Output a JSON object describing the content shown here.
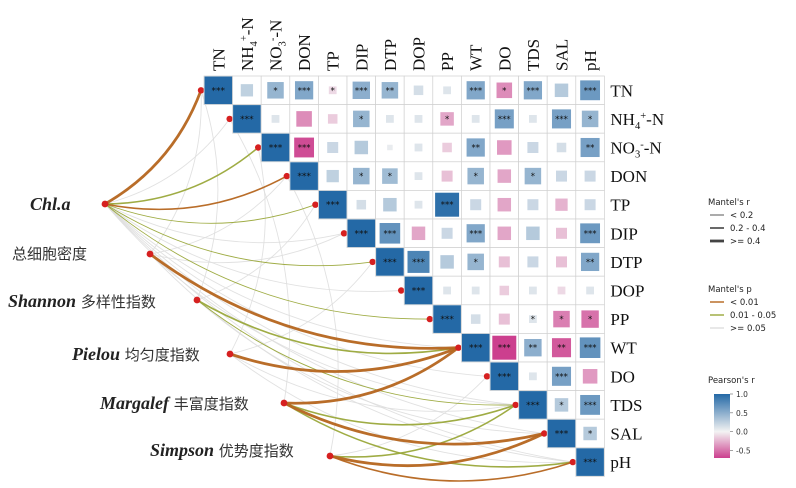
{
  "chart_data": {
    "type": "heatmap",
    "variables": [
      "TN",
      "NH4+-N",
      "NO3--N",
      "DON",
      "TP",
      "DIP",
      "DTP",
      "DOP",
      "PP",
      "WT",
      "DO",
      "TDS",
      "SAL",
      "pH"
    ],
    "variable_labels": [
      {
        "base": "TN"
      },
      {
        "base": "NH",
        "sub": "4",
        "sup": "+",
        "tail": "-N"
      },
      {
        "base": "NO",
        "sub": "3",
        "sup": "-",
        "tail": "-N"
      },
      {
        "base": "DON"
      },
      {
        "base": "TP"
      },
      {
        "base": "DIP"
      },
      {
        "base": "DTP"
      },
      {
        "base": "DOP"
      },
      {
        "base": "PP"
      },
      {
        "base": "WT"
      },
      {
        "base": "DO"
      },
      {
        "base": "TDS"
      },
      {
        "base": "SAL"
      },
      {
        "base": "pH"
      }
    ],
    "correlations": [
      {
        "row": 0,
        "col": 1,
        "r": 0.25,
        "sig": ""
      },
      {
        "row": 0,
        "col": 2,
        "r": 0.45,
        "sig": "*"
      },
      {
        "row": 0,
        "col": 3,
        "r": 0.55,
        "sig": "***"
      },
      {
        "row": 0,
        "col": 4,
        "r": -0.1,
        "sig": "*"
      },
      {
        "row": 0,
        "col": 5,
        "r": 0.5,
        "sig": "***"
      },
      {
        "row": 0,
        "col": 6,
        "r": 0.45,
        "sig": "**"
      },
      {
        "row": 0,
        "col": 7,
        "r": 0.15,
        "sig": ""
      },
      {
        "row": 0,
        "col": 8,
        "r": 0.1,
        "sig": ""
      },
      {
        "row": 0,
        "col": 9,
        "r": 0.55,
        "sig": "***"
      },
      {
        "row": 0,
        "col": 10,
        "r": -0.4,
        "sig": "*"
      },
      {
        "row": 0,
        "col": 11,
        "r": 0.55,
        "sig": "***"
      },
      {
        "row": 0,
        "col": 12,
        "r": 0.3,
        "sig": ""
      },
      {
        "row": 0,
        "col": 13,
        "r": 0.65,
        "sig": "***"
      },
      {
        "row": 1,
        "col": 2,
        "r": 0.1,
        "sig": ""
      },
      {
        "row": 1,
        "col": 3,
        "r": -0.4,
        "sig": ""
      },
      {
        "row": 1,
        "col": 4,
        "r": -0.15,
        "sig": ""
      },
      {
        "row": 1,
        "col": 5,
        "r": 0.45,
        "sig": "*"
      },
      {
        "row": 1,
        "col": 6,
        "r": 0.1,
        "sig": ""
      },
      {
        "row": 1,
        "col": 7,
        "r": 0.1,
        "sig": ""
      },
      {
        "row": 1,
        "col": 8,
        "r": -0.3,
        "sig": "*"
      },
      {
        "row": 1,
        "col": 9,
        "r": 0.1,
        "sig": ""
      },
      {
        "row": 1,
        "col": 10,
        "r": 0.6,
        "sig": "***"
      },
      {
        "row": 1,
        "col": 11,
        "r": 0.1,
        "sig": ""
      },
      {
        "row": 1,
        "col": 12,
        "r": 0.6,
        "sig": "***"
      },
      {
        "row": 1,
        "col": 13,
        "r": 0.45,
        "sig": "*"
      },
      {
        "row": 2,
        "col": 3,
        "r": -0.65,
        "sig": "***"
      },
      {
        "row": 2,
        "col": 4,
        "r": 0.2,
        "sig": ""
      },
      {
        "row": 2,
        "col": 5,
        "r": 0.3,
        "sig": ""
      },
      {
        "row": 2,
        "col": 6,
        "r": 0.05,
        "sig": ""
      },
      {
        "row": 2,
        "col": 7,
        "r": 0.1,
        "sig": ""
      },
      {
        "row": 2,
        "col": 8,
        "r": -0.15,
        "sig": ""
      },
      {
        "row": 2,
        "col": 9,
        "r": 0.55,
        "sig": "**"
      },
      {
        "row": 2,
        "col": 10,
        "r": -0.35,
        "sig": ""
      },
      {
        "row": 2,
        "col": 11,
        "r": 0.2,
        "sig": ""
      },
      {
        "row": 2,
        "col": 12,
        "r": 0.15,
        "sig": ""
      },
      {
        "row": 2,
        "col": 13,
        "r": 0.6,
        "sig": "**"
      },
      {
        "row": 3,
        "col": 4,
        "r": 0.25,
        "sig": ""
      },
      {
        "row": 3,
        "col": 5,
        "r": 0.45,
        "sig": "*"
      },
      {
        "row": 3,
        "col": 6,
        "r": 0.4,
        "sig": "*"
      },
      {
        "row": 3,
        "col": 7,
        "r": 0.1,
        "sig": ""
      },
      {
        "row": 3,
        "col": 8,
        "r": -0.2,
        "sig": ""
      },
      {
        "row": 3,
        "col": 9,
        "r": 0.45,
        "sig": "*"
      },
      {
        "row": 3,
        "col": 10,
        "r": -0.3,
        "sig": ""
      },
      {
        "row": 3,
        "col": 11,
        "r": 0.45,
        "sig": "*"
      },
      {
        "row": 3,
        "col": 12,
        "r": 0.2,
        "sig": ""
      },
      {
        "row": 3,
        "col": 13,
        "r": 0.2,
        "sig": ""
      },
      {
        "row": 4,
        "col": 5,
        "r": 0.15,
        "sig": ""
      },
      {
        "row": 4,
        "col": 6,
        "r": 0.3,
        "sig": ""
      },
      {
        "row": 4,
        "col": 7,
        "r": 0.1,
        "sig": ""
      },
      {
        "row": 4,
        "col": 8,
        "r": 0.95,
        "sig": "***"
      },
      {
        "row": 4,
        "col": 9,
        "r": 0.2,
        "sig": ""
      },
      {
        "row": 4,
        "col": 10,
        "r": -0.3,
        "sig": ""
      },
      {
        "row": 4,
        "col": 11,
        "r": 0.2,
        "sig": ""
      },
      {
        "row": 4,
        "col": 12,
        "r": -0.25,
        "sig": ""
      },
      {
        "row": 4,
        "col": 13,
        "r": 0.2,
        "sig": ""
      },
      {
        "row": 5,
        "col": 6,
        "r": 0.7,
        "sig": "***"
      },
      {
        "row": 5,
        "col": 7,
        "r": -0.3,
        "sig": ""
      },
      {
        "row": 5,
        "col": 8,
        "r": 0.2,
        "sig": ""
      },
      {
        "row": 5,
        "col": 9,
        "r": 0.55,
        "sig": "***"
      },
      {
        "row": 5,
        "col": 10,
        "r": -0.3,
        "sig": ""
      },
      {
        "row": 5,
        "col": 11,
        "r": 0.3,
        "sig": ""
      },
      {
        "row": 5,
        "col": 12,
        "r": -0.2,
        "sig": ""
      },
      {
        "row": 5,
        "col": 13,
        "r": 0.65,
        "sig": "***"
      },
      {
        "row": 6,
        "col": 7,
        "r": 0.8,
        "sig": "***"
      },
      {
        "row": 6,
        "col": 8,
        "r": 0.3,
        "sig": ""
      },
      {
        "row": 6,
        "col": 9,
        "r": 0.45,
        "sig": "*"
      },
      {
        "row": 6,
        "col": 10,
        "r": -0.2,
        "sig": ""
      },
      {
        "row": 6,
        "col": 11,
        "r": 0.2,
        "sig": ""
      },
      {
        "row": 6,
        "col": 12,
        "r": -0.2,
        "sig": ""
      },
      {
        "row": 6,
        "col": 13,
        "r": 0.55,
        "sig": "**"
      },
      {
        "row": 7,
        "col": 8,
        "r": 0.1,
        "sig": ""
      },
      {
        "row": 7,
        "col": 9,
        "r": 0.1,
        "sig": ""
      },
      {
        "row": 7,
        "col": 10,
        "r": -0.15,
        "sig": ""
      },
      {
        "row": 7,
        "col": 11,
        "r": 0.1,
        "sig": ""
      },
      {
        "row": 7,
        "col": 12,
        "r": -0.1,
        "sig": ""
      },
      {
        "row": 7,
        "col": 13,
        "r": 0.1,
        "sig": ""
      },
      {
        "row": 8,
        "col": 9,
        "r": 0.15,
        "sig": ""
      },
      {
        "row": 8,
        "col": 10,
        "r": -0.2,
        "sig": ""
      },
      {
        "row": 8,
        "col": 11,
        "r": 0.1,
        "sig": "*"
      },
      {
        "row": 8,
        "col": 12,
        "r": -0.45,
        "sig": "*"
      },
      {
        "row": 8,
        "col": 13,
        "r": -0.5,
        "sig": "*"
      },
      {
        "row": 9,
        "col": 10,
        "r": -0.95,
        "sig": "***"
      },
      {
        "row": 9,
        "col": 11,
        "r": 0.5,
        "sig": "**"
      },
      {
        "row": 9,
        "col": 12,
        "r": -0.6,
        "sig": "**"
      },
      {
        "row": 9,
        "col": 13,
        "r": 0.7,
        "sig": "***"
      },
      {
        "row": 10,
        "col": 11,
        "r": 0.1,
        "sig": ""
      },
      {
        "row": 10,
        "col": 12,
        "r": 0.6,
        "sig": "***"
      },
      {
        "row": 10,
        "col": 13,
        "r": -0.35,
        "sig": ""
      },
      {
        "row": 11,
        "col": 12,
        "r": 0.3,
        "sig": "*"
      },
      {
        "row": 11,
        "col": 13,
        "r": 0.65,
        "sig": "***"
      },
      {
        "row": 12,
        "col": 13,
        "r": 0.3,
        "sig": "*"
      }
    ],
    "diagonal_sig": "***",
    "biotic_indices": [
      {
        "id": "chla",
        "italic": "Chl.a",
        "rest": ""
      },
      {
        "id": "density",
        "italic": "",
        "rest": "总细胞密度"
      },
      {
        "id": "shannon",
        "italic": "Shannon",
        "rest": " 多样性指数"
      },
      {
        "id": "pielou",
        "italic": "Pielou",
        "rest": " 均匀度指数"
      },
      {
        "id": "margalef",
        "italic": "Margalef",
        "rest": " 丰富度指数"
      },
      {
        "id": "simpson",
        "italic": "Simpson",
        "rest": " 优势度指数"
      }
    ],
    "mantel_links": [
      {
        "from": 0,
        "to": 0,
        "r_class": 2,
        "p_class": 0
      },
      {
        "from": 0,
        "to": 1,
        "r_class": 0,
        "p_class": 2
      },
      {
        "from": 0,
        "to": 2,
        "r_class": 1,
        "p_class": 1
      },
      {
        "from": 0,
        "to": 3,
        "r_class": 1,
        "p_class": 0
      },
      {
        "from": 0,
        "to": 4,
        "r_class": 0,
        "p_class": 1
      },
      {
        "from": 0,
        "to": 5,
        "r_class": 0,
        "p_class": 2
      },
      {
        "from": 0,
        "to": 6,
        "r_class": 0,
        "p_class": 1
      },
      {
        "from": 0,
        "to": 7,
        "r_class": 0,
        "p_class": 2
      },
      {
        "from": 0,
        "to": 8,
        "r_class": 0,
        "p_class": 1
      },
      {
        "from": 0,
        "to": 9,
        "r_class": 0,
        "p_class": 2
      },
      {
        "from": 0,
        "to": 10,
        "r_class": 0,
        "p_class": 2
      },
      {
        "from": 0,
        "to": 11,
        "r_class": 0,
        "p_class": 2
      },
      {
        "from": 0,
        "to": 12,
        "r_class": 0,
        "p_class": 2
      },
      {
        "from": 0,
        "to": 13,
        "r_class": 0,
        "p_class": 2
      },
      {
        "from": 1,
        "to": 0,
        "r_class": 0,
        "p_class": 2
      },
      {
        "from": 1,
        "to": 3,
        "r_class": 0,
        "p_class": 2
      },
      {
        "from": 1,
        "to": 5,
        "r_class": 0,
        "p_class": 2
      },
      {
        "from": 1,
        "to": 9,
        "r_class": 2,
        "p_class": 0
      },
      {
        "from": 1,
        "to": 11,
        "r_class": 0,
        "p_class": 2
      },
      {
        "from": 1,
        "to": 13,
        "r_class": 0,
        "p_class": 2
      },
      {
        "from": 2,
        "to": 0,
        "r_class": 0,
        "p_class": 2
      },
      {
        "from": 2,
        "to": 4,
        "r_class": 0,
        "p_class": 2
      },
      {
        "from": 2,
        "to": 9,
        "r_class": 1,
        "p_class": 1
      },
      {
        "from": 2,
        "to": 11,
        "r_class": 0,
        "p_class": 1
      },
      {
        "from": 2,
        "to": 12,
        "r_class": 0,
        "p_class": 2
      },
      {
        "from": 3,
        "to": 2,
        "r_class": 0,
        "p_class": 2
      },
      {
        "from": 3,
        "to": 6,
        "r_class": 0,
        "p_class": 2
      },
      {
        "from": 3,
        "to": 9,
        "r_class": 2,
        "p_class": 0
      },
      {
        "from": 3,
        "to": 11,
        "r_class": 0,
        "p_class": 2
      },
      {
        "from": 3,
        "to": 13,
        "r_class": 0,
        "p_class": 2
      },
      {
        "from": 4,
        "to": 1,
        "r_class": 0,
        "p_class": 2
      },
      {
        "from": 4,
        "to": 9,
        "r_class": 2,
        "p_class": 0
      },
      {
        "from": 4,
        "to": 11,
        "r_class": 1,
        "p_class": 1
      },
      {
        "from": 4,
        "to": 12,
        "r_class": 2,
        "p_class": 0
      },
      {
        "from": 4,
        "to": 13,
        "r_class": 1,
        "p_class": 1
      },
      {
        "from": 5,
        "to": 3,
        "r_class": 0,
        "p_class": 2
      },
      {
        "from": 5,
        "to": 10,
        "r_class": 0,
        "p_class": 2
      },
      {
        "from": 5,
        "to": 11,
        "r_class": 1,
        "p_class": 1
      },
      {
        "from": 5,
        "to": 12,
        "r_class": 2,
        "p_class": 0
      },
      {
        "from": 5,
        "to": 13,
        "r_class": 1,
        "p_class": 0
      }
    ],
    "legend": {
      "mantel_r": {
        "title": "Mantel's r",
        "items": [
          "< 0.2",
          "0.2 - 0.4",
          ">= 0.4"
        ]
      },
      "mantel_p": {
        "title": "Mantel's p",
        "items": [
          "< 0.01",
          "0.01 - 0.05",
          ">= 0.05"
        ],
        "colors": [
          "#b5651d",
          "#9aa83a",
          "#dedede"
        ]
      },
      "pearson": {
        "title": "Pearson's r",
        "ticks": [
          "1.0",
          "0.5",
          "0.0",
          "-0.5"
        ],
        "range": [
          -0.7,
          1.0
        ],
        "colors": {
          "neg": "#cc3f8e",
          "zero": "#f3f3f3",
          "pos": "#2469a6"
        }
      }
    }
  }
}
